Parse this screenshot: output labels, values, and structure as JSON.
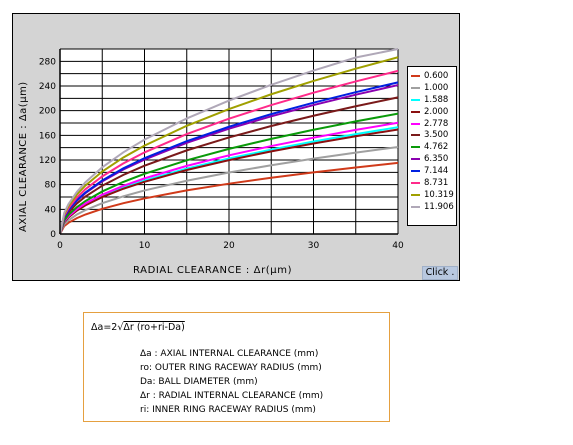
{
  "chart_data": {
    "type": "line",
    "ylabel": "AXIAL CLEARANCE : Δa(μm)",
    "xlabel": "RADIAL CLEARANCE : Δr(μm)",
    "xlim": [
      0,
      40
    ],
    "ylim": [
      0,
      300
    ],
    "x_ticks": [
      "0",
      "10",
      "20",
      "30",
      "40"
    ],
    "y_ticks": [
      "0",
      "40",
      "80",
      "120",
      "160",
      "200",
      "240",
      "280"
    ],
    "grid": true,
    "legend_position": "right",
    "x": [
      0.5,
      1,
      2,
      3,
      5,
      7.5,
      10,
      15,
      20,
      25,
      30,
      35,
      40
    ],
    "series": [
      {
        "name": "0.600",
        "color": "#d03a1a",
        "values": [
          12.9,
          18.2,
          25.8,
          31.6,
          40.8,
          50.0,
          57.7,
          70.7,
          81.6,
          91.2,
          99.9,
          107.9,
          115.3
        ]
      },
      {
        "name": "1.000",
        "color": "#a0a0a0",
        "values": [
          15.8,
          22.3,
          31.6,
          38.7,
          49.9,
          61.1,
          70.6,
          86.4,
          99.8,
          111.5,
          122.2,
          132.0,
          141.1
        ]
      },
      {
        "name": "1.588",
        "color": "#00ffff",
        "values": [
          19.4,
          27.4,
          38.7,
          47.4,
          61.2,
          75.0,
          86.6,
          106.0,
          122.4,
          136.9,
          150.0,
          162.0,
          173.2
        ]
      },
      {
        "name": "2.000",
        "color": "#8b1010",
        "values": [
          18.9,
          26.8,
          37.9,
          46.4,
          59.9,
          73.4,
          84.7,
          103.8,
          119.8,
          134.0,
          146.8,
          158.5,
          169.5
        ]
      },
      {
        "name": "2.778",
        "color": "#ff00ff",
        "values": [
          20.2,
          28.5,
          40.3,
          49.4,
          63.8,
          78.1,
          90.2,
          110.5,
          127.6,
          142.6,
          156.2,
          168.8,
          180.4
        ]
      },
      {
        "name": "3.500",
        "color": "#7a1a1a",
        "values": [
          24.8,
          35.0,
          49.5,
          60.7,
          78.3,
          95.9,
          110.7,
          135.6,
          156.6,
          175.1,
          191.8,
          207.2,
          221.5
        ]
      },
      {
        "name": "4.762",
        "color": "#0a9a0a",
        "values": [
          21.8,
          30.9,
          43.6,
          53.4,
          69.0,
          84.5,
          97.6,
          119.5,
          138.0,
          154.3,
          169.0,
          182.6,
          195.2
        ]
      },
      {
        "name": "6.350",
        "color": "#8a00b0",
        "values": [
          27.0,
          38.2,
          54.0,
          66.1,
          85.4,
          104.6,
          120.7,
          147.9,
          170.8,
          190.9,
          209.1,
          225.9,
          241.5
        ]
      },
      {
        "name": "7.144",
        "color": "#0020e0",
        "values": [
          27.5,
          38.9,
          55.0,
          67.3,
          86.9,
          106.5,
          123.0,
          150.6,
          173.9,
          194.4,
          212.9,
          230.0,
          245.9
        ]
      },
      {
        "name": "8.731",
        "color": "#ff2a8a",
        "values": [
          29.6,
          41.8,
          59.2,
          72.5,
          93.5,
          114.5,
          132.3,
          162.0,
          187.0,
          209.1,
          229.1,
          247.4,
          264.5
        ]
      },
      {
        "name": "10.319",
        "color": "#a0a000",
        "values": [
          32.0,
          45.3,
          64.1,
          78.5,
          101.3,
          124.1,
          143.3,
          175.5,
          202.6,
          226.6,
          248.2,
          268.1,
          286.6
        ]
      },
      {
        "name": "11.906",
        "color": "#b0a8b8",
        "values": [
          34.2,
          48.4,
          68.4,
          83.8,
          108.2,
          132.5,
          153.0,
          187.4,
          216.4,
          241.9,
          265.0,
          286.2,
          306.0
        ]
      }
    ]
  },
  "button": {
    "label": "Click ."
  },
  "formula": {
    "main_prefix": "Δa=2",
    "main_radical": "Δr (ro+ri-Da)",
    "definitions": [
      "Δa : AXIAL INTERNAL CLEARANCE (mm)",
      "ro: OUTER RING RACEWAY RADIUS (mm)",
      "Da: BALL DIAMETER (mm)",
      "Δr : RADIAL INTERNAL CLEARANCE (mm)",
      "ri: INNER RING RACEWAY RADIUS (mm)"
    ]
  }
}
